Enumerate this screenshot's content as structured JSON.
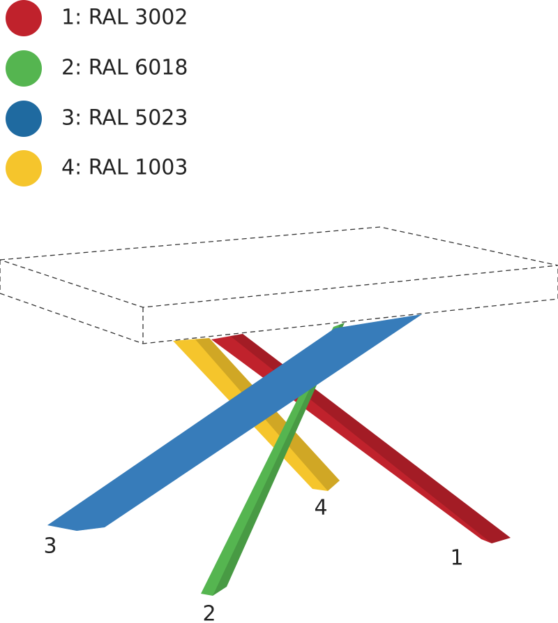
{
  "legend": [
    {
      "label": "1: RAL 3002",
      "color": "#c0222c"
    },
    {
      "label": "2: RAL 6018",
      "color": "#55b550"
    },
    {
      "label": "3: RAL 5023",
      "color": "#1f6aa0"
    },
    {
      "label": "4: RAL 1003",
      "color": "#f5c52c"
    }
  ],
  "leg_labels": [
    "1",
    "2",
    "3",
    "4"
  ]
}
